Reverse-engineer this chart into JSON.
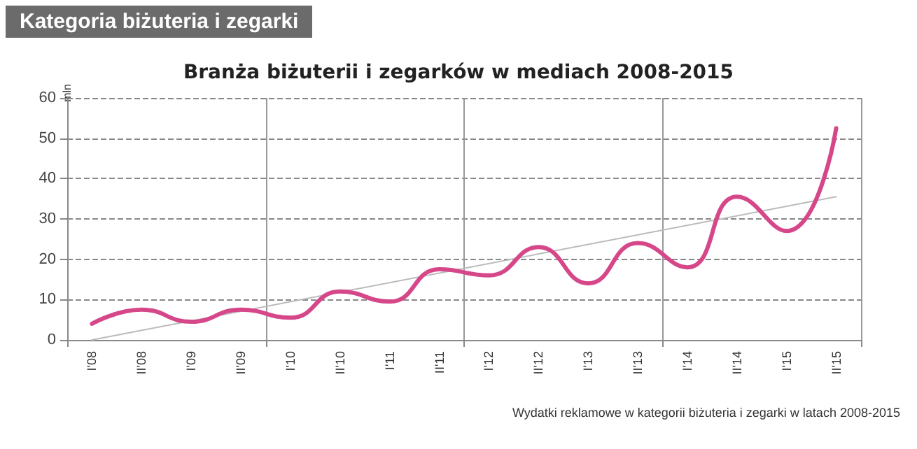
{
  "chart_data": {
    "type": "line",
    "subtitle": "Kategoria biżuteria i zegarki",
    "title": "Branża biżuterii i zegarków w mediach 2008-2015",
    "ylabel": "mln",
    "categories": [
      "I'08",
      "II'08",
      "I'09",
      "II'09",
      "I'10",
      "II'10",
      "I'11",
      "II'11",
      "I'12",
      "II'12",
      "I'13",
      "II'13",
      "I'14",
      "II'14",
      "I'15",
      "II'15"
    ],
    "series": [
      {
        "color": "#d6478a",
        "values": [
          4,
          7.5,
          4.5,
          7.5,
          5.5,
          12,
          9.5,
          17.5,
          16,
          23,
          14,
          24,
          18,
          35.5,
          27,
          52.5
        ]
      },
      {
        "color": "#bbbbbb",
        "x": [
          "I'08",
          "II'15"
        ],
        "values": [
          0,
          35.5
        ]
      }
    ],
    "ylim": [
      0,
      60
    ],
    "yticks": [
      0,
      10,
      20,
      30,
      40,
      50,
      60
    ],
    "grid": true,
    "marker": "none",
    "annotations": [
      "Wydatki reklamowe w kategorii biżuteria i zegarki w latach 2008-2015"
    ]
  }
}
